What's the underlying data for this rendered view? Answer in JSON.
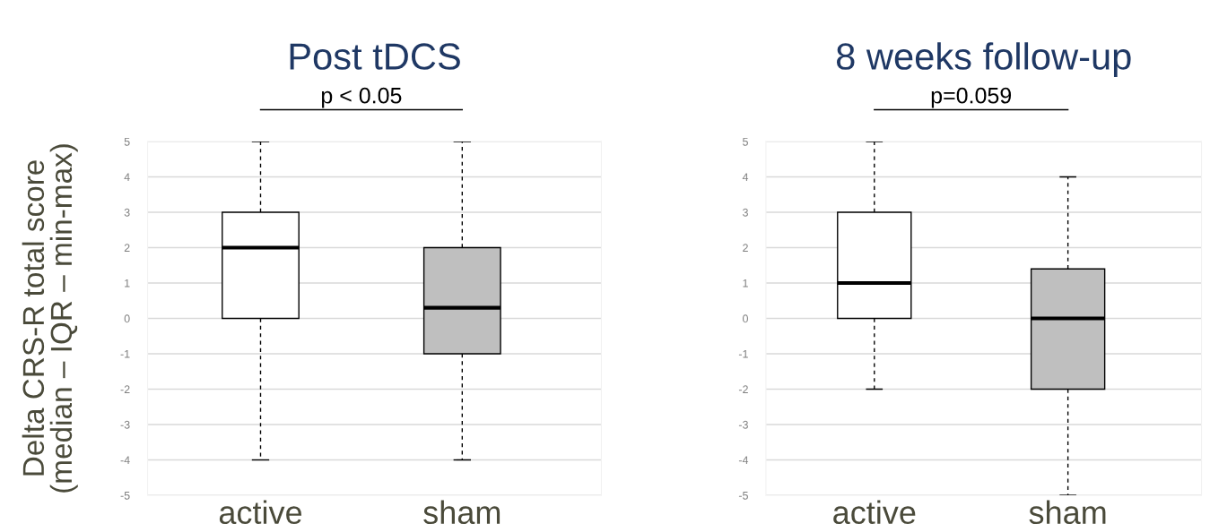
{
  "chart_data": [
    {
      "type": "box",
      "title": "Post tDCS",
      "ylabel": "Delta CRS-R total score\n(median – IQR – min-max)",
      "categories": [
        "active",
        "sham"
      ],
      "colors": [
        "#ffffff",
        "#bfbfbf"
      ],
      "boxes": [
        {
          "low": -4,
          "q1": 0,
          "median": 2,
          "q3": 3,
          "high": 5
        },
        {
          "low": -4,
          "q1": -1,
          "median": 0.3,
          "q3": 2,
          "high": 5
        }
      ],
      "ylim": [
        -5,
        5
      ],
      "yticks": [
        -5,
        -4,
        -3,
        -2,
        -1,
        0,
        1,
        2,
        3,
        4,
        5
      ],
      "grid": "y",
      "annotations": [
        "p < 0.05"
      ]
    },
    {
      "type": "box",
      "title": "8 weeks follow-up",
      "categories": [
        "active",
        "sham"
      ],
      "colors": [
        "#ffffff",
        "#bfbfbf"
      ],
      "boxes": [
        {
          "low": -2,
          "q1": 0,
          "median": 1,
          "q3": 3,
          "high": 5
        },
        {
          "low": -5,
          "q1": -2,
          "median": 0,
          "q3": 1.4,
          "high": 4
        }
      ],
      "ylim": [
        -5,
        5
      ],
      "yticks": [
        -5,
        -4,
        -3,
        -2,
        -1,
        0,
        1,
        2,
        3,
        4,
        5
      ],
      "grid": "y",
      "annotations": [
        "p=0.059"
      ]
    }
  ]
}
